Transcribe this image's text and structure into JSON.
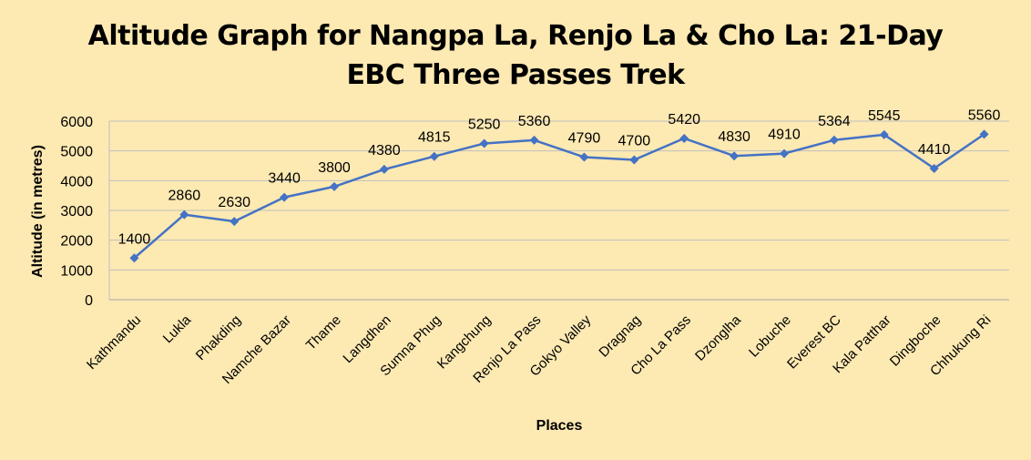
{
  "chart_data": {
    "type": "line",
    "title_line1": "Altitude Graph for Nangpa La, Renjo La & Cho La: 21-Day",
    "title_line2": "EBC Three Passes Trek",
    "xlabel": "Places",
    "ylabel": "Altitude (in metres)",
    "ylim": [
      0,
      6000
    ],
    "yticks": [
      0,
      1000,
      2000,
      3000,
      4000,
      5000,
      6000
    ],
    "grid": true,
    "legend": "none",
    "line_color": "#4472c4",
    "categories": [
      "Kathmandu",
      "Lukla",
      "Phakding",
      "Namche Bazar",
      "Thame",
      "Langdhen",
      "Sumna Phug",
      "Kangchung",
      "Renjo La Pass",
      "Gokyo Valley",
      "Dragnag",
      "Cho La Pass",
      "Dzonglha",
      "Lobuche",
      "Everest BC",
      "Kala Patthar",
      "Dingboche",
      "Chhukung Ri"
    ],
    "values": [
      1400,
      2860,
      2630,
      3440,
      3800,
      4380,
      4815,
      5250,
      5360,
      4790,
      4700,
      5420,
      4830,
      4910,
      5364,
      5545,
      4410,
      5560
    ]
  }
}
